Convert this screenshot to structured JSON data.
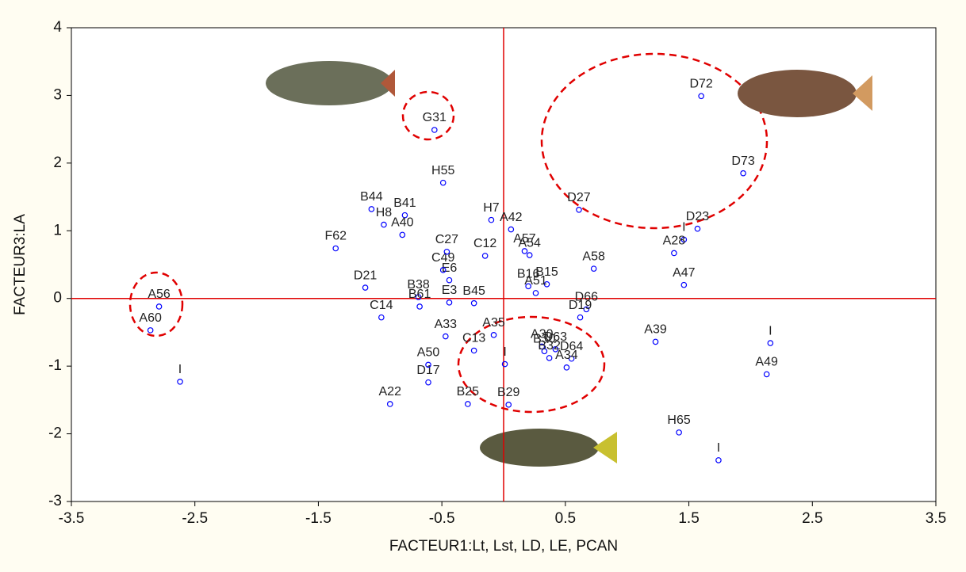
{
  "chart_data": {
    "type": "scatter",
    "x_label": "FACTEUR1:Lt, Lst, LD, LE, PCAN",
    "y_label": "FACTEUR3:LA",
    "xlim": [
      -3.5,
      3.5
    ],
    "xticks": [
      -3.5,
      -2.5,
      -1.5,
      -0.5,
      0.5,
      1.5,
      2.5,
      3.5
    ],
    "ylim": [
      -3,
      4
    ],
    "yticks": [
      -3,
      -2,
      -1,
      0,
      1,
      2,
      3,
      4
    ],
    "zero_lines": true,
    "zero_line_color": "#e00000",
    "series": [
      {
        "color": "#0000ff",
        "labels": [
          "D72",
          "D73",
          "G31",
          "H55",
          "D27",
          "D23",
          "I",
          "A28",
          "A47",
          "A58",
          "B44",
          "H8",
          "B41",
          "A40",
          "F62",
          "D21",
          "C14",
          "A56",
          "A60",
          "I",
          "B38",
          "B61",
          "H7",
          "A42",
          "A22",
          "D17",
          "A50",
          "B25",
          "B29",
          "I",
          "A33",
          "C13",
          "A39",
          "I",
          "A49",
          "H65",
          "I",
          "D66",
          "D19",
          "B30",
          "D63",
          "A30",
          "B32",
          "D64",
          "A34",
          "B45",
          "E3",
          "A35",
          "C12",
          "B15",
          "E6",
          "A57",
          "A54",
          "B16",
          "A51",
          "C49",
          "C27"
        ],
        "x": [
          1.6,
          1.94,
          -0.56,
          -0.49,
          0.61,
          1.57,
          1.46,
          1.38,
          1.46,
          0.73,
          -1.07,
          -0.97,
          -0.8,
          -0.82,
          -1.36,
          -1.12,
          -0.99,
          -2.79,
          -2.86,
          -2.62,
          -0.69,
          -0.68,
          -0.1,
          0.06,
          -0.92,
          -0.61,
          -0.61,
          -0.29,
          0.04,
          0.01,
          -0.47,
          -0.24,
          1.23,
          2.16,
          2.13,
          1.42,
          1.74,
          0.67,
          0.62,
          0.33,
          0.42,
          0.31,
          0.37,
          0.55,
          0.51,
          -0.24,
          -0.44,
          -0.08,
          -0.15,
          0.35,
          -0.44,
          0.17,
          0.21,
          0.2,
          0.26,
          -0.49,
          -0.46
        ],
        "values": [
          2.99,
          1.85,
          2.49,
          1.71,
          1.31,
          1.03,
          0.87,
          0.67,
          0.2,
          0.44,
          1.32,
          1.09,
          1.23,
          0.94,
          0.74,
          0.16,
          -0.28,
          -0.12,
          -0.47,
          -1.23,
          0.02,
          -0.12,
          1.16,
          1.02,
          -1.56,
          -1.24,
          -0.98,
          -1.56,
          -1.57,
          -0.97,
          -0.56,
          -0.77,
          -0.64,
          -0.66,
          -1.12,
          -1.98,
          -2.39,
          -0.16,
          -0.28,
          -0.78,
          -0.75,
          -0.71,
          -0.88,
          -0.89,
          -1.02,
          -0.07,
          -0.06,
          -0.54,
          0.63,
          0.21,
          0.27,
          0.7,
          0.64,
          0.18,
          0.08,
          0.42,
          0.69
        ]
      }
    ]
  }
}
